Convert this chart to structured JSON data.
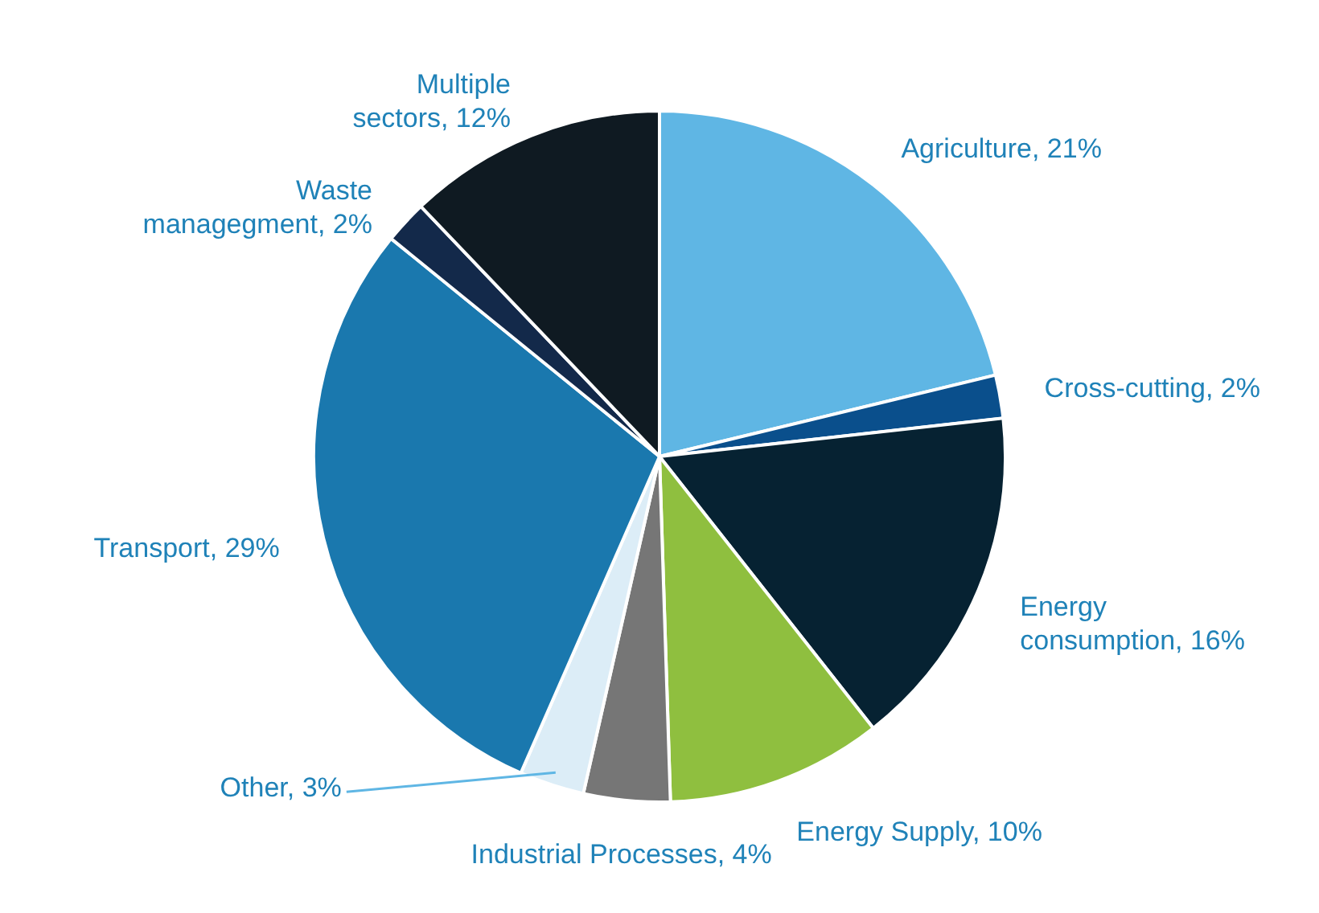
{
  "chart_data": {
    "type": "pie",
    "categories": [
      "Agriculture",
      "Cross-cutting",
      "Energy consumption",
      "Energy Supply",
      "Industrial Processes",
      "Other",
      "Transport",
      "Waste managegment",
      "Multiple sectors"
    ],
    "values": [
      21,
      2,
      16,
      10,
      4,
      3,
      29,
      2,
      12
    ],
    "colors": [
      "#5fb6e4",
      "#0a4f8c",
      "#062232",
      "#8fbf3f",
      "#767676",
      "#dcedf7",
      "#1a78ae",
      "#13294a",
      "#0f1a22"
    ],
    "value_labels": [
      "21%",
      "2%",
      "16%",
      "10%",
      "4%",
      "3%",
      "29%",
      "2%",
      "12%"
    ]
  }
}
